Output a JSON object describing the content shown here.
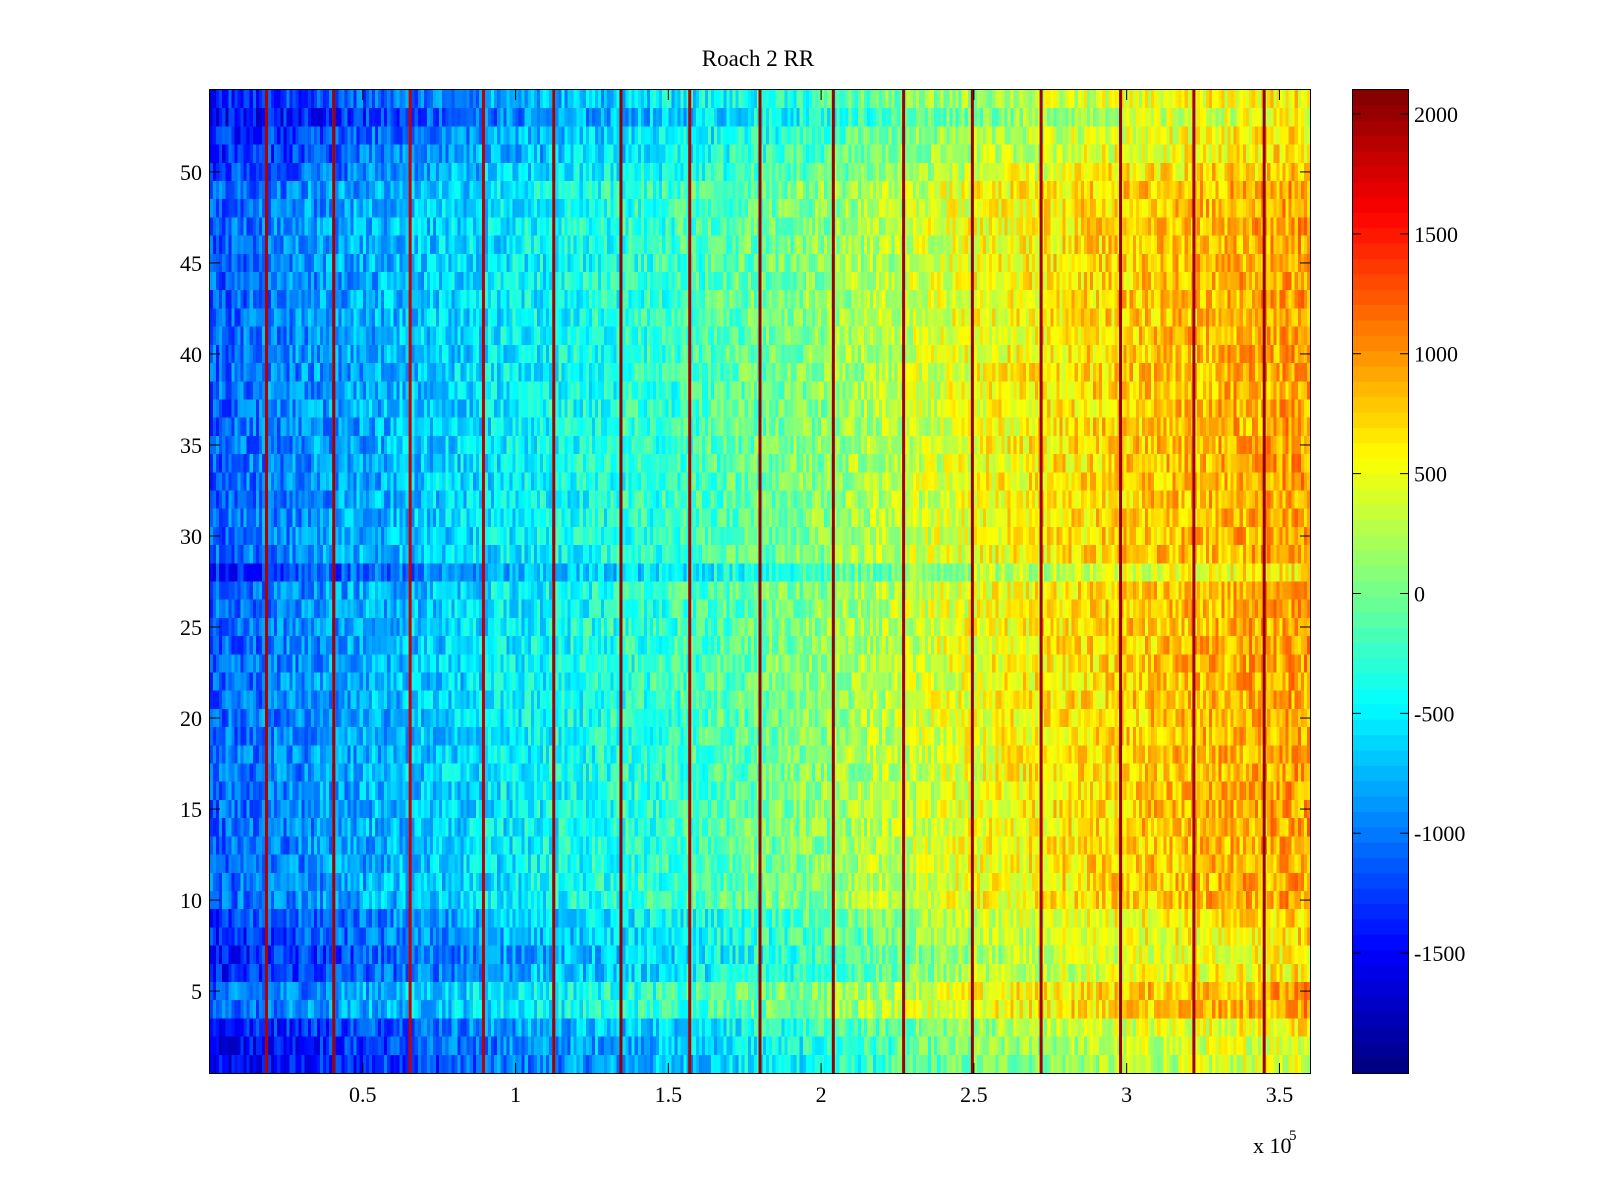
{
  "chart_data": {
    "type": "heatmap",
    "title": "Roach 2 RR",
    "xlabel": "",
    "ylabel": "",
    "x_range": [
      0,
      360000
    ],
    "y_range": [
      0.5,
      54.5
    ],
    "x_ticks": [
      50000,
      100000,
      150000,
      200000,
      250000,
      300000,
      350000
    ],
    "x_tick_labels": [
      "0.5",
      "1",
      "1.5",
      "2",
      "2.5",
      "3",
      "3.5"
    ],
    "x_multiplier_label": "x 10",
    "x_multiplier_exponent": "5",
    "y_ticks": [
      5,
      10,
      15,
      20,
      25,
      30,
      35,
      40,
      45,
      50
    ],
    "y_tick_labels": [
      "5",
      "10",
      "15",
      "20",
      "25",
      "30",
      "35",
      "40",
      "45",
      "50"
    ],
    "rows": 54,
    "colormap": "jet",
    "colorbar": {
      "range": [
        -2000,
        2100
      ],
      "ticks": [
        2000,
        1500,
        1000,
        500,
        0,
        -500,
        -1000,
        -1500
      ],
      "tick_labels": [
        "2000",
        "1500",
        "1000",
        "500",
        "0",
        "-500",
        "-1000",
        "-1500"
      ]
    },
    "trend": {
      "description": "values increase roughly linearly along x",
      "x": [
        0,
        50000,
        100000,
        150000,
        200000,
        250000,
        300000,
        360000
      ],
      "value": [
        -1100,
        -800,
        -500,
        -250,
        100,
        500,
        750,
        950
      ]
    },
    "row_offsets": {
      "rows": [
        1,
        2,
        3,
        6,
        7,
        8,
        9,
        28,
        50,
        51,
        52,
        53,
        54
      ],
      "offset": [
        -500,
        -450,
        -350,
        -300,
        -350,
        -250,
        -200,
        -300,
        -150,
        -250,
        -300,
        -450,
        -300
      ]
    },
    "stripe_lines": {
      "x": [
        18500,
        40500,
        65500,
        89500,
        112500,
        134500,
        157000,
        180000,
        204000,
        227000,
        249500,
        272000,
        298000,
        322000,
        345000
      ],
      "value": [
        1900,
        1950,
        1800,
        1850,
        1950,
        2000,
        1900,
        2000,
        2000,
        1950,
        2000,
        1950,
        2000,
        1950,
        2000
      ]
    }
  }
}
